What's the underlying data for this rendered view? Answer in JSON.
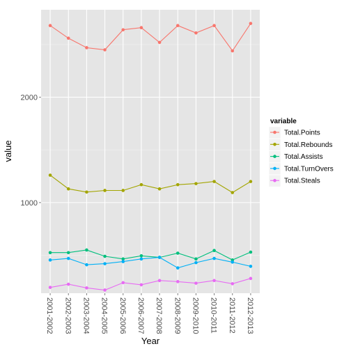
{
  "chart_data": {
    "type": "line",
    "title": "",
    "xlabel": "Year",
    "ylabel": "value",
    "categories": [
      "2001-2002",
      "2002-2003",
      "2003-2004",
      "2004-2005",
      "2005-2006",
      "2006-2007",
      "2007-2008",
      "2008-2009",
      "2009-2010",
      "2010-2011",
      "2011-2012",
      "2012-2013"
    ],
    "yticks": [
      1000,
      2000
    ],
    "ylim": [
      140,
      2830
    ],
    "grid": true,
    "legend": {
      "title": "variable",
      "position": "right"
    },
    "series": [
      {
        "name": "Total.Points",
        "color": "#F8766D",
        "values": [
          2680,
          2560,
          2470,
          2450,
          2640,
          2660,
          2520,
          2680,
          2610,
          2680,
          2440,
          2700
        ]
      },
      {
        "name": "Total.Rebounds",
        "color": "#A3A500",
        "values": [
          1260,
          1130,
          1100,
          1115,
          1115,
          1170,
          1130,
          1170,
          1180,
          1200,
          1095,
          1200
        ]
      },
      {
        "name": "Total.Assists",
        "color": "#00BF7D",
        "values": [
          525,
          525,
          550,
          490,
          465,
          495,
          480,
          520,
          465,
          545,
          455,
          530
        ]
      },
      {
        "name": "Total.TurnOvers",
        "color": "#00B0F6",
        "values": [
          455,
          470,
          410,
          420,
          440,
          465,
          480,
          380,
          430,
          470,
          435,
          395
        ]
      },
      {
        "name": "Total.Steals",
        "color": "#E76BF3",
        "values": [
          195,
          225,
          190,
          170,
          240,
          220,
          260,
          250,
          235,
          260,
          230,
          280
        ]
      }
    ]
  }
}
